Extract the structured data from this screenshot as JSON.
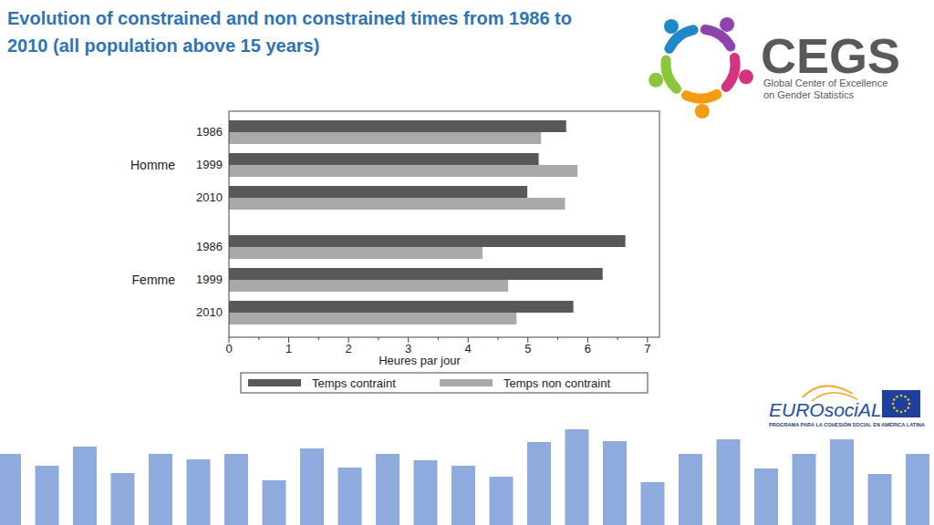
{
  "chart_data": {
    "type": "bar",
    "orientation": "horizontal",
    "title": [
      "Evolution of constrained and non constrained times from 1986 to",
      "2010 (all population above 15 years)"
    ],
    "x_label": "Heures par jour",
    "categories": [
      "1986",
      "1999",
      "2010",
      "1986",
      "1999",
      "2010"
    ],
    "groups": [
      "Homme",
      "Homme",
      "Homme",
      "Femme",
      "Femme",
      "Femme"
    ],
    "series": [
      {
        "name": "Temps contraint",
        "color": "#585858",
        "values": [
          5.64,
          5.18,
          4.99,
          6.63,
          6.25,
          5.76
        ]
      },
      {
        "name": "Temps non contraint",
        "color": "#a9a9a9",
        "values": [
          5.22,
          5.83,
          5.62,
          4.24,
          4.67,
          4.81
        ]
      }
    ],
    "xlim": [
      0,
      7.2
    ],
    "xticks": [
      0,
      1,
      2,
      3,
      4,
      5,
      6,
      7
    ],
    "grid": false,
    "legend": "bottom",
    "data_labels": false
  },
  "branding": {
    "cegs": "CEGS",
    "cegs_subtitle": [
      "Global Center of Excellence",
      "on Gender Statistics"
    ],
    "eurosocial": "EUROsociAL",
    "eurosocial_tagline": "PROGRAMA PARA LA COHESIÓN SOCIAL EN AMÉRICA LATINA"
  }
}
